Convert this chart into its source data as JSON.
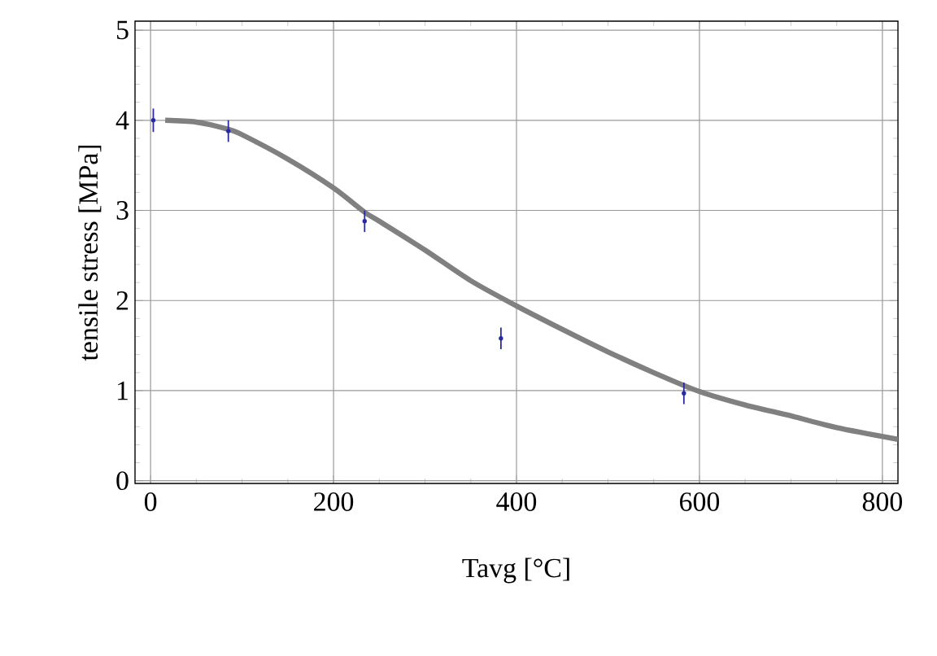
{
  "chart_data": {
    "type": "scatter",
    "xlabel": "Tavg [°C]",
    "ylabel": "tensile stress [MPa]",
    "xlim": [
      -17,
      817
    ],
    "ylim": [
      -0.03,
      5.1
    ],
    "xticks": [
      0,
      200,
      400,
      600,
      800
    ],
    "yticks": [
      0,
      1,
      2,
      3,
      4,
      5
    ],
    "grid": true,
    "marker": "circle",
    "series": [
      {
        "type": "line",
        "color": "#808080",
        "line_style": "solid",
        "marker": "none",
        "x": [
          16,
          50,
          85,
          100,
          150,
          200,
          234,
          250,
          300,
          350,
          400,
          450,
          500,
          550,
          600,
          650,
          700,
          750,
          817
        ],
        "values": [
          4.0,
          3.98,
          3.9,
          3.84,
          3.57,
          3.25,
          2.98,
          2.88,
          2.56,
          2.22,
          1.94,
          1.68,
          1.43,
          1.2,
          0.99,
          0.84,
          0.72,
          0.59,
          0.46
        ]
      },
      {
        "color": "#2a2aa0",
        "x": [
          3,
          85,
          234,
          383,
          583
        ],
        "values": [
          4.0,
          3.88,
          2.88,
          1.58,
          0.97
        ],
        "errors": [
          0.13,
          0.12,
          0.12,
          0.12,
          0.12
        ]
      }
    ]
  }
}
